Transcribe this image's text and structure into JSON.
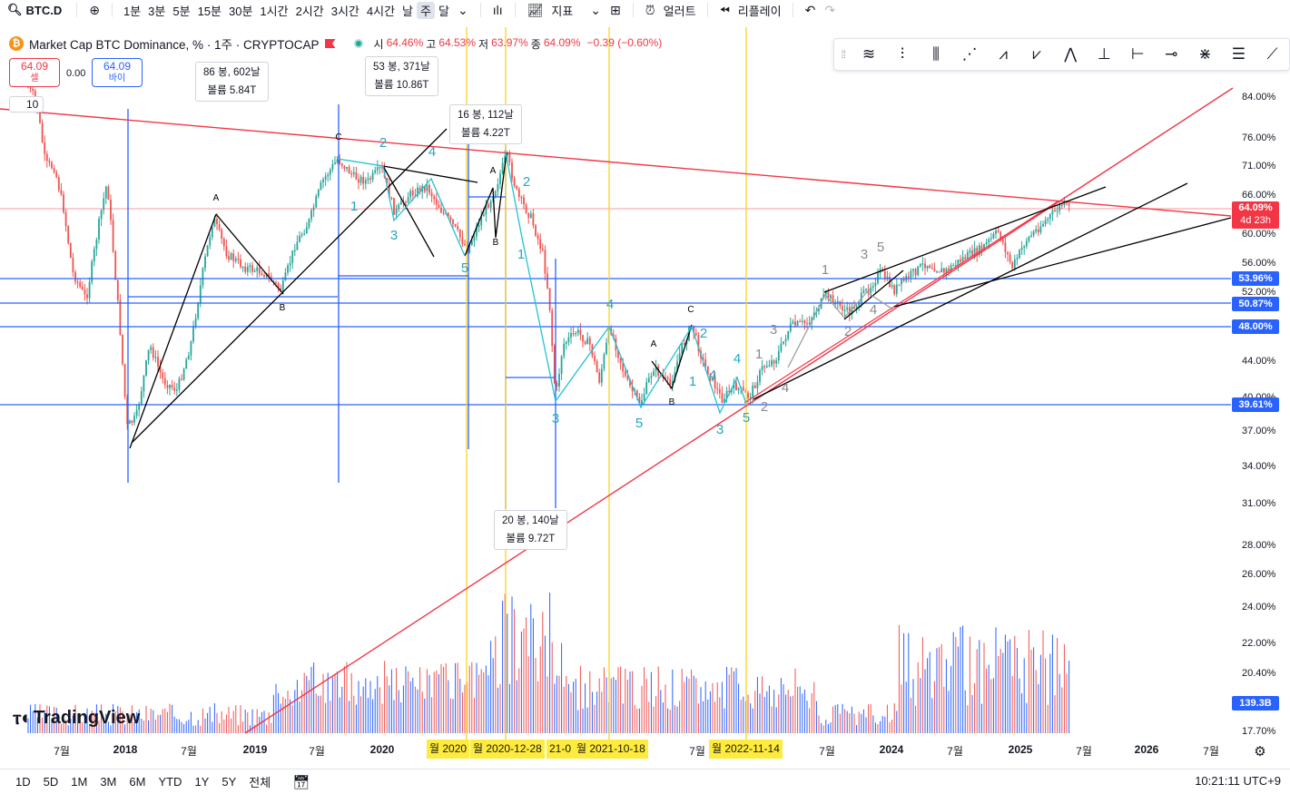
{
  "toolbar": {
    "symbol": "BTC.D",
    "intervals": [
      "1분",
      "3분",
      "5분",
      "15분",
      "30분",
      "1시간",
      "2시간",
      "3시간",
      "4시간",
      "날",
      "주",
      "달"
    ],
    "active_interval": "주",
    "indicators_label": "지표",
    "alert_label": "얼러트",
    "replay_label": "리플레이"
  },
  "legend": {
    "title": "Market Cap BTC Dominance, % · 1주 · CRYPTOCAP",
    "open_label": "시",
    "open": "64.46%",
    "high_label": "고",
    "high": "64.53%",
    "low_label": "저",
    "low": "63.97%",
    "close_label": "종",
    "close": "64.09%",
    "change": "−0.39 (−0.60%)"
  },
  "trade": {
    "sell_price": "64.09",
    "sell_label": "셀",
    "spread": "0.00",
    "buy_price": "64.09",
    "buy_label": "바이",
    "quantity": "10"
  },
  "info_boxes": [
    {
      "line1": "86 봉, 602날",
      "line2": "볼륨 5.84T"
    },
    {
      "line1": "53 봉, 371날",
      "line2": "볼륨 10.86T"
    },
    {
      "line1": "16 봉, 112날",
      "line2": "볼륨 4.22T"
    },
    {
      "line1": "20 봉, 140날",
      "line2": "볼륨 9.72T"
    }
  ],
  "price_axis": {
    "ticks": [
      "84.00%",
      "76.00%",
      "71.00%",
      "66.00%",
      "60.00%",
      "56.00%",
      "52.00%",
      "44.00%",
      "40.00%",
      "37.00%",
      "34.00%",
      "31.00%",
      "28.00%",
      "26.00%",
      "24.00%",
      "22.00%",
      "20.40%",
      "17.70%"
    ],
    "current_price": "64.09%",
    "countdown": "4d 23h",
    "tags": [
      "53.96%",
      "50.87%",
      "48.00%",
      "39.61%"
    ],
    "volume_tag": "139.3B",
    "colors": {
      "current": "#f23645",
      "level": "#2962ff",
      "volume": "#2962ff"
    }
  },
  "time_axis": {
    "labels": [
      "7월",
      "2018",
      "7월",
      "2019",
      "7월",
      "2020",
      "7월",
      "2024",
      "7월",
      "2025",
      "7월",
      "2026",
      "7월"
    ],
    "highlights": [
      "월 2020",
      "월 2020-12-28",
      "21-0",
      "월 2021-10-18",
      "월 2022-11-14"
    ],
    "extra_label": "7월"
  },
  "wave_labels": {
    "cyan": [
      "2",
      "4",
      "1",
      "3",
      "2",
      "1",
      "3",
      "5",
      "1",
      "2",
      "3",
      "4",
      "5",
      "4",
      "5",
      "4"
    ],
    "gray": [
      "1",
      "3",
      "5",
      "2",
      "4",
      "1",
      "3",
      "2",
      "4"
    ],
    "black": [
      "A",
      "B",
      "C",
      "A",
      "B",
      "C",
      "A",
      "B",
      "C"
    ]
  },
  "bottom": {
    "ranges": [
      "1D",
      "5D",
      "1M",
      "3M",
      "6M",
      "YTD",
      "1Y",
      "5Y",
      "전체"
    ],
    "clock": "10:21:11 UTC+9"
  },
  "brand": "TradingView"
}
